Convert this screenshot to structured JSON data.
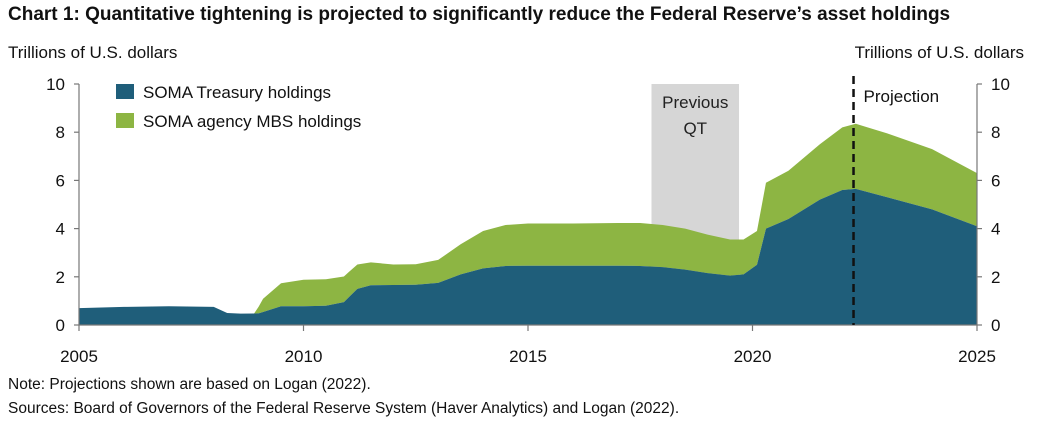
{
  "title": "Chart 1: Quantitative tightening is projected to significantly reduce the Federal Reserve’s asset holdings",
  "ylabel_left": "Trillions of U.S. dollars",
  "ylabel_right": "Trillions of U.S. dollars",
  "note": "Note: Projections shown are based on Logan (2022).",
  "sources": "Sources: Board of Governors of the Federal Reserve System (Haver Analytics) and Logan (2022).",
  "colors": {
    "treasury": "#1f5e7a",
    "mbs": "#8db543",
    "shade": "#d6d6d6"
  },
  "chart_data": {
    "type": "area",
    "xlim": [
      2005,
      2025
    ],
    "ylim": [
      0,
      10
    ],
    "x_ticks": [
      2005,
      2010,
      2015,
      2020,
      2025
    ],
    "y_ticks": [
      0,
      2,
      4,
      6,
      8,
      10
    ],
    "legend": "top-left",
    "series": [
      {
        "name": "SOMA Treasury holdings",
        "points": [
          [
            2005,
            0.7
          ],
          [
            2006,
            0.75
          ],
          [
            2007,
            0.78
          ],
          [
            2008,
            0.75
          ],
          [
            2008.3,
            0.5
          ],
          [
            2008.6,
            0.47
          ],
          [
            2009,
            0.48
          ],
          [
            2009.5,
            0.78
          ],
          [
            2010,
            0.78
          ],
          [
            2010.5,
            0.8
          ],
          [
            2010.9,
            0.95
          ],
          [
            2011.2,
            1.5
          ],
          [
            2011.5,
            1.65
          ],
          [
            2012,
            1.66
          ],
          [
            2012.5,
            1.67
          ],
          [
            2013,
            1.75
          ],
          [
            2013.5,
            2.1
          ],
          [
            2014,
            2.35
          ],
          [
            2014.5,
            2.45
          ],
          [
            2015,
            2.46
          ],
          [
            2016,
            2.46
          ],
          [
            2017,
            2.46
          ],
          [
            2017.5,
            2.45
          ],
          [
            2018,
            2.4
          ],
          [
            2018.5,
            2.3
          ],
          [
            2019,
            2.15
          ],
          [
            2019.5,
            2.05
          ],
          [
            2019.8,
            2.1
          ],
          [
            2020.1,
            2.5
          ],
          [
            2020.3,
            4.0
          ],
          [
            2020.8,
            4.4
          ],
          [
            2021.5,
            5.2
          ],
          [
            2022,
            5.6
          ],
          [
            2022.3,
            5.65
          ],
          [
            2023,
            5.3
          ],
          [
            2024,
            4.8
          ],
          [
            2025,
            4.1
          ]
        ]
      },
      {
        "name": "SOMA agency MBS holdings",
        "points": [
          [
            2005,
            0
          ],
          [
            2008.9,
            0
          ],
          [
            2009.1,
            0.55
          ],
          [
            2009.5,
            0.95
          ],
          [
            2010,
            1.1
          ],
          [
            2010.5,
            1.1
          ],
          [
            2011,
            1.05
          ],
          [
            2011.5,
            0.95
          ],
          [
            2012,
            0.85
          ],
          [
            2012.5,
            0.85
          ],
          [
            2013,
            0.95
          ],
          [
            2013.5,
            1.25
          ],
          [
            2014,
            1.55
          ],
          [
            2014.5,
            1.7
          ],
          [
            2015,
            1.75
          ],
          [
            2016,
            1.75
          ],
          [
            2017,
            1.77
          ],
          [
            2017.5,
            1.78
          ],
          [
            2018,
            1.75
          ],
          [
            2018.5,
            1.7
          ],
          [
            2019,
            1.6
          ],
          [
            2019.5,
            1.5
          ],
          [
            2019.8,
            1.45
          ],
          [
            2020.1,
            1.4
          ],
          [
            2020.3,
            1.9
          ],
          [
            2020.8,
            2.0
          ],
          [
            2021.5,
            2.3
          ],
          [
            2022,
            2.6
          ],
          [
            2022.3,
            2.7
          ],
          [
            2023,
            2.65
          ],
          [
            2024,
            2.5
          ],
          [
            2025,
            2.2
          ]
        ]
      }
    ],
    "annotations": [
      {
        "label": "Previous QT",
        "x_start": 2017.75,
        "x_end": 2019.7,
        "lines": [
          "Previous",
          "QT"
        ]
      },
      {
        "label": "Projection",
        "x": 2022.25
      }
    ]
  }
}
